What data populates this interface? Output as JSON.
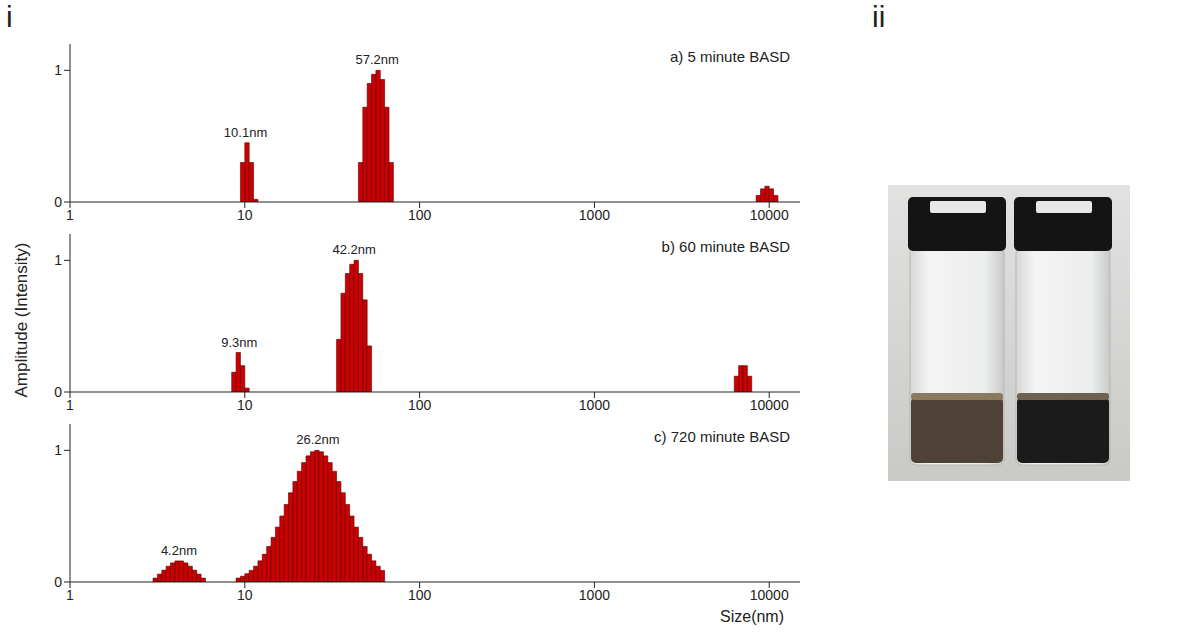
{
  "panel_labels": [
    "i",
    "ii"
  ],
  "ylabel": "Amplitude (Intensity)",
  "xlabel": "Size(nm)",
  "chart_data": [
    {
      "type": "histogram",
      "title": "a) 5 minute BASD",
      "log": "x",
      "xlim": [
        1,
        15000
      ],
      "xticks": [
        1,
        10,
        100,
        1000,
        10000
      ],
      "ylim": [
        0,
        1.2
      ],
      "yticks": [
        0,
        1
      ],
      "color": "#cc0000",
      "peaks": [
        {
          "label": "10.1nm",
          "label_x": 10.1,
          "bins": [
            9.441,
            10.0,
            10.59,
            11.22,
            11.89
          ],
          "counts": [
            0.3,
            0.45,
            0.3,
            0.02
          ]
        },
        {
          "label": "57.2nm",
          "label_x": 57.2,
          "bins": [
            44.67,
            47.32,
            50.12,
            53.09,
            56.23,
            59.57,
            63.1,
            66.83,
            70.79
          ],
          "counts": [
            0.3,
            0.72,
            0.9,
            0.97,
            1.0,
            0.93,
            0.72,
            0.3
          ]
        },
        {
          "bins": [
            8414,
            8913,
            9441,
            10000,
            10593,
            11220
          ],
          "counts": [
            0.05,
            0.1,
            0.12,
            0.1,
            0.05
          ]
        }
      ]
    },
    {
      "type": "histogram",
      "title": "b) 60 minute BASD",
      "log": "x",
      "xlim": [
        1,
        15000
      ],
      "xticks": [
        1,
        10,
        100,
        1000,
        10000
      ],
      "ylim": [
        0,
        1.2
      ],
      "yticks": [
        0,
        1
      ],
      "color": "#cc0000",
      "peaks": [
        {
          "label": "9.3nm",
          "label_x": 9.3,
          "bins": [
            8.414,
            8.913,
            9.441,
            10.0,
            10.59
          ],
          "counts": [
            0.15,
            0.3,
            0.2,
            0.03
          ]
        },
        {
          "label": "42.2nm",
          "label_x": 42.2,
          "bins": [
            33.5,
            35.48,
            37.58,
            39.81,
            42.17,
            44.67,
            47.32,
            50.12,
            53.09
          ],
          "counts": [
            0.4,
            0.75,
            0.9,
            0.97,
            1.0,
            0.9,
            0.7,
            0.35
          ]
        },
        {
          "bins": [
            6310,
            6683,
            7079,
            7499,
            7943
          ],
          "counts": [
            0.12,
            0.2,
            0.2,
            0.12
          ]
        }
      ]
    },
    {
      "type": "histogram",
      "title": "c) 720 minute BASD",
      "log": "x",
      "xlim": [
        1,
        15000
      ],
      "xticks": [
        1,
        10,
        100,
        1000,
        10000
      ],
      "ylim": [
        0,
        1.2
      ],
      "yticks": [
        0,
        1
      ],
      "color": "#cc0000",
      "peaks": [
        {
          "label": "4.2nm",
          "label_x": 4.2,
          "bins": [
            2.985,
            3.162,
            3.35,
            3.548,
            3.758,
            3.981,
            4.217,
            4.467,
            4.732,
            5.012,
            5.309,
            5.623,
            5.957
          ],
          "counts": [
            0.03,
            0.06,
            0.09,
            0.12,
            0.145,
            0.16,
            0.16,
            0.145,
            0.12,
            0.09,
            0.06,
            0.03
          ]
        },
        {
          "label": "26.2nm",
          "label_x": 26.2,
          "bins": [
            8.913,
            9.441,
            10.0,
            10.59,
            11.22,
            11.89,
            12.59,
            13.34,
            14.13,
            14.96,
            15.85,
            16.79,
            17.78,
            18.84,
            19.95,
            21.13,
            22.39,
            23.71,
            25.12,
            26.61,
            28.18,
            29.85,
            31.62,
            33.5,
            35.48,
            37.58,
            39.81,
            42.17,
            44.67,
            47.32,
            50.12,
            53.09,
            56.23,
            59.57,
            63.1
          ],
          "counts": [
            0.03,
            0.044,
            0.063,
            0.088,
            0.12,
            0.161,
            0.211,
            0.27,
            0.339,
            0.417,
            0.501,
            0.589,
            0.678,
            0.763,
            0.841,
            0.907,
            0.958,
            0.989,
            1.0,
            0.989,
            0.958,
            0.907,
            0.841,
            0.763,
            0.678,
            0.589,
            0.501,
            0.417,
            0.339,
            0.27,
            0.211,
            0.161,
            0.12,
            0.088
          ]
        }
      ]
    }
  ]
}
